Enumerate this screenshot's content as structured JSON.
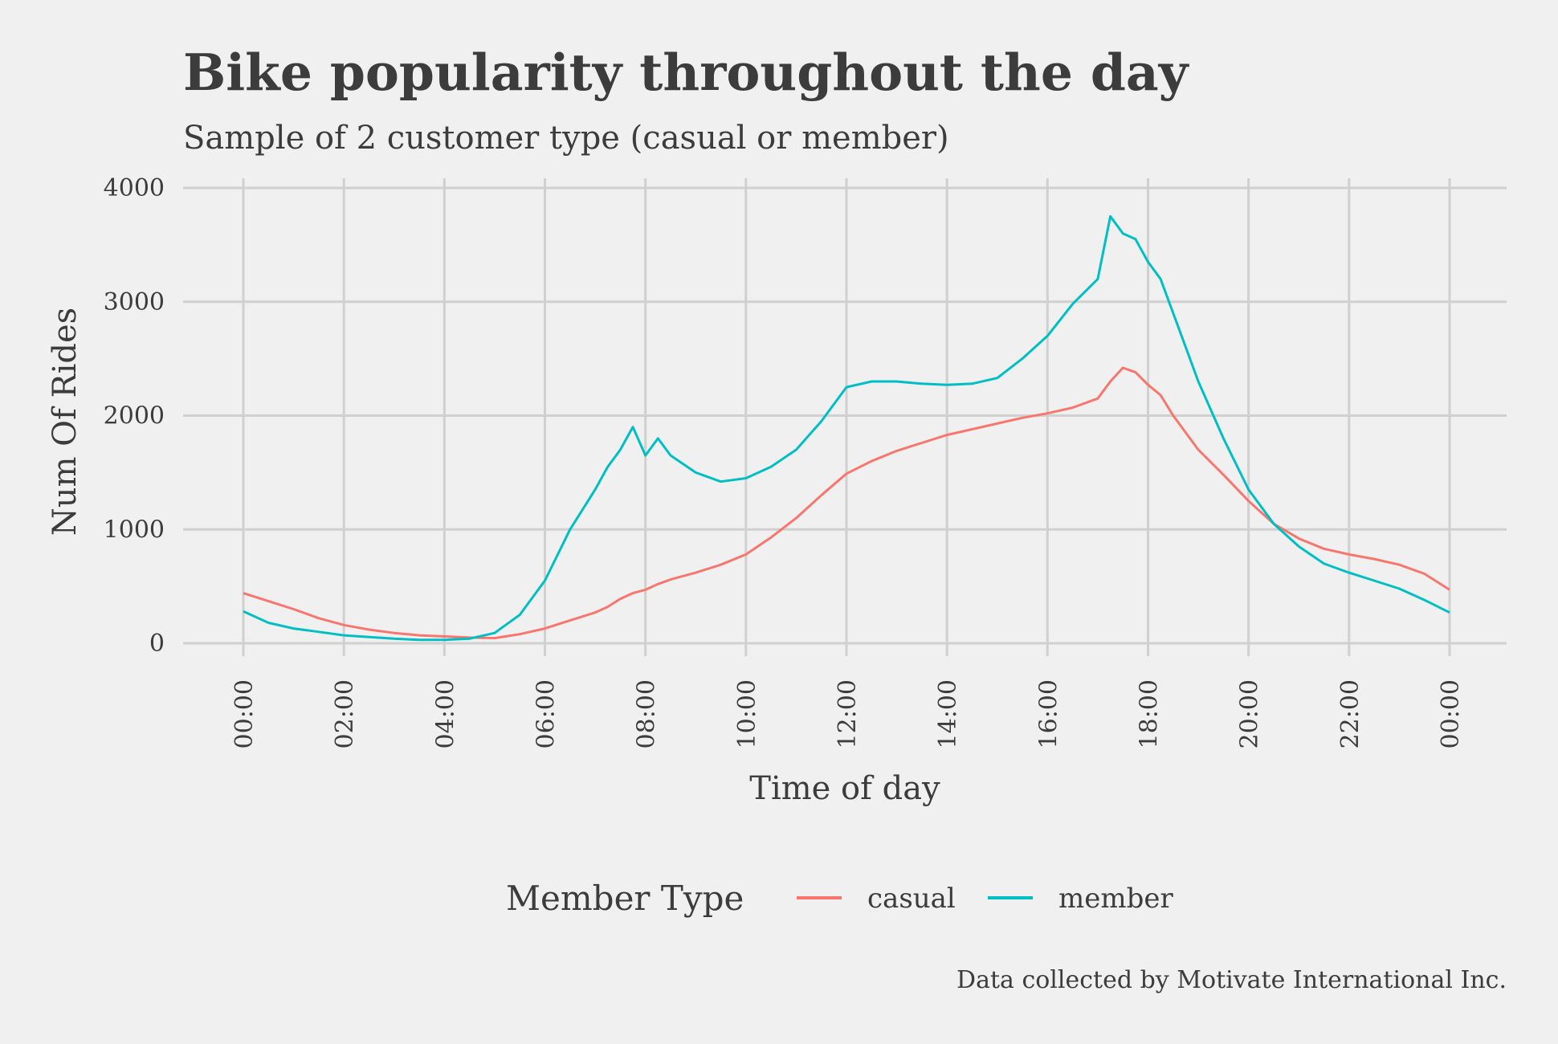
{
  "chart_data": {
    "type": "line",
    "title": "Bike popularity throughout the day",
    "subtitle": "Sample of 2 customer type (casual or member)",
    "xlabel": "Time of day",
    "ylabel": "Num Of Rides",
    "caption": "Data collected by Motivate International Inc.",
    "legend_title": "Member Type",
    "legend_position": "bottom",
    "grid": true,
    "xlim": [
      0,
      24
    ],
    "ylim": [
      0,
      4000
    ],
    "x_ticks": [
      0,
      2,
      4,
      6,
      8,
      10,
      12,
      14,
      16,
      18,
      20,
      22,
      24
    ],
    "x_tick_labels": [
      "00:00",
      "02:00",
      "04:00",
      "06:00",
      "08:00",
      "10:00",
      "12:00",
      "14:00",
      "16:00",
      "18:00",
      "20:00",
      "22:00",
      "00:00"
    ],
    "y_ticks": [
      0,
      1000,
      2000,
      3000,
      4000
    ],
    "y_tick_labels": [
      "0",
      "1000",
      "2000",
      "3000",
      "4000"
    ],
    "x": [
      0,
      0.5,
      1,
      1.5,
      2,
      2.5,
      3,
      3.5,
      4,
      4.5,
      5,
      5.5,
      6,
      6.5,
      7,
      7.25,
      7.5,
      7.75,
      8,
      8.25,
      8.5,
      9,
      9.5,
      10,
      10.5,
      11,
      11.5,
      12,
      12.5,
      13,
      13.5,
      14,
      14.5,
      15,
      15.5,
      16,
      16.5,
      17,
      17.25,
      17.5,
      17.75,
      18,
      18.25,
      18.5,
      19,
      19.5,
      20,
      20.5,
      21,
      21.5,
      22,
      22.5,
      23,
      23.5,
      24
    ],
    "series": [
      {
        "name": "casual",
        "color": "#f8766d",
        "values": [
          440,
          370,
          300,
          220,
          160,
          120,
          90,
          70,
          60,
          50,
          45,
          80,
          130,
          200,
          270,
          320,
          390,
          440,
          470,
          520,
          560,
          620,
          690,
          780,
          930,
          1100,
          1300,
          1490,
          1600,
          1690,
          1760,
          1830,
          1880,
          1930,
          1980,
          2020,
          2070,
          2150,
          2300,
          2420,
          2380,
          2270,
          2180,
          2000,
          1700,
          1480,
          1250,
          1050,
          920,
          830,
          780,
          740,
          690,
          610,
          470
        ]
      },
      {
        "name": "member",
        "color": "#00bfc4",
        "values": [
          280,
          180,
          130,
          100,
          70,
          55,
          40,
          30,
          30,
          40,
          90,
          250,
          550,
          1000,
          1350,
          1550,
          1700,
          1900,
          1650,
          1800,
          1650,
          1500,
          1420,
          1450,
          1550,
          1700,
          1950,
          2250,
          2300,
          2300,
          2280,
          2270,
          2280,
          2330,
          2500,
          2700,
          2980,
          3200,
          3750,
          3600,
          3550,
          3350,
          3200,
          2900,
          2300,
          1800,
          1350,
          1050,
          850,
          700,
          620,
          550,
          480,
          380,
          270
        ]
      }
    ]
  }
}
